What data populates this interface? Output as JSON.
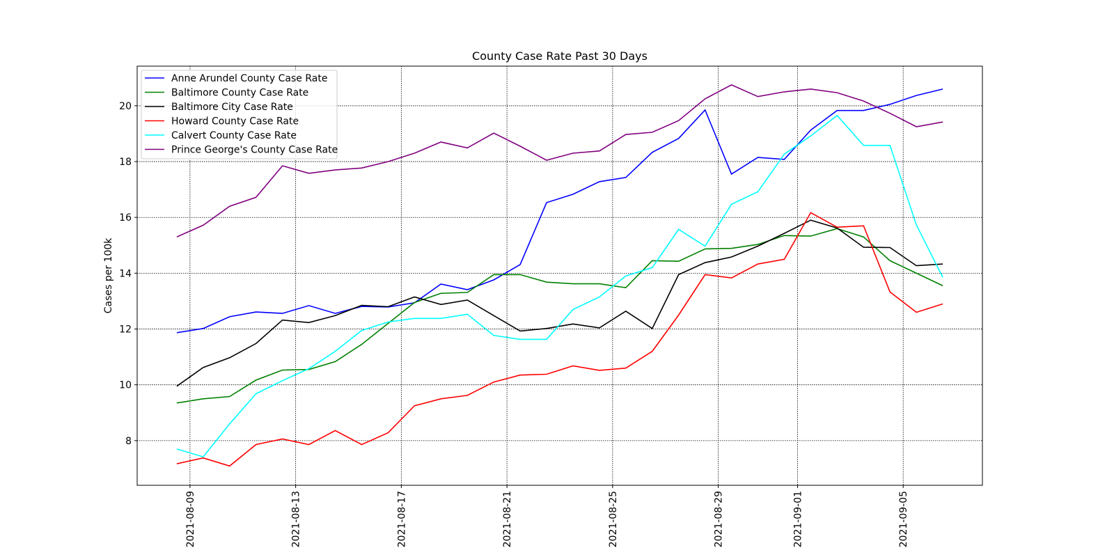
{
  "chart_data": {
    "type": "line",
    "title": "County Case Rate Past 30 Days",
    "ylabel": "Cases per 100k",
    "x": [
      "2021-08-08",
      "2021-08-09",
      "2021-08-10",
      "2021-08-11",
      "2021-08-12",
      "2021-08-13",
      "2021-08-14",
      "2021-08-15",
      "2021-08-16",
      "2021-08-17",
      "2021-08-18",
      "2021-08-19",
      "2021-08-20",
      "2021-08-21",
      "2021-08-22",
      "2021-08-23",
      "2021-08-24",
      "2021-08-25",
      "2021-08-26",
      "2021-08-27",
      "2021-08-28",
      "2021-08-29",
      "2021-08-30",
      "2021-08-31",
      "2021-09-01",
      "2021-09-02",
      "2021-09-03",
      "2021-09-04",
      "2021-09-05",
      "2021-09-06"
    ],
    "xlim": [
      "2021-08-07",
      "2021-09-08"
    ],
    "xticks": [
      "2021-08-09",
      "2021-08-13",
      "2021-08-17",
      "2021-08-21",
      "2021-08-25",
      "2021-08-29",
      "2021-09-01",
      "2021-09-05"
    ],
    "ylim": [
      6.4,
      21.42
    ],
    "yticks": [
      8,
      10,
      12,
      14,
      16,
      18,
      20
    ],
    "grid": true,
    "legend": "upper left",
    "series": [
      {
        "name": "Anne Arundel County Case Rate",
        "color": "#0000ff",
        "values": [
          11.87,
          12.02,
          12.44,
          12.61,
          12.56,
          12.84,
          12.56,
          12.81,
          12.79,
          12.94,
          13.61,
          13.41,
          13.76,
          14.31,
          16.53,
          16.83,
          17.28,
          17.43,
          18.33,
          18.83,
          19.85,
          17.55,
          18.15,
          18.08,
          19.13,
          19.83,
          19.83,
          20.05,
          20.37,
          20.6
        ]
      },
      {
        "name": "Baltimore County Case Rate",
        "color": "#008000",
        "values": [
          9.35,
          9.5,
          9.58,
          10.17,
          10.53,
          10.55,
          10.83,
          11.45,
          12.2,
          12.95,
          13.28,
          13.31,
          13.95,
          13.95,
          13.68,
          13.62,
          13.62,
          13.48,
          14.45,
          14.43,
          14.87,
          14.89,
          15.03,
          15.35,
          15.33,
          15.6,
          15.3,
          14.45,
          14.0,
          13.55
        ]
      },
      {
        "name": "Baltimore City Case Rate",
        "color": "#000000",
        "values": [
          9.95,
          10.62,
          10.97,
          11.48,
          12.32,
          12.23,
          12.48,
          12.85,
          12.8,
          13.15,
          12.88,
          13.04,
          12.48,
          11.93,
          12.02,
          12.18,
          12.04,
          12.64,
          12.02,
          13.95,
          14.38,
          14.58,
          14.97,
          15.43,
          15.9,
          15.62,
          14.93,
          14.92,
          14.27,
          14.33
        ]
      },
      {
        "name": "Howard County Case Rate",
        "color": "#ff0000",
        "values": [
          7.17,
          7.38,
          7.09,
          7.86,
          8.06,
          7.86,
          8.36,
          7.86,
          8.28,
          9.25,
          9.5,
          9.62,
          10.1,
          10.35,
          10.38,
          10.68,
          10.52,
          10.6,
          11.2,
          12.5,
          13.95,
          13.83,
          14.33,
          14.5,
          16.17,
          15.65,
          15.7,
          13.33,
          12.6,
          12.9
        ]
      },
      {
        "name": "Calvert County Case Rate",
        "color": "#00ffff",
        "values": [
          7.7,
          7.42,
          8.6,
          9.68,
          10.15,
          10.58,
          11.2,
          11.95,
          12.25,
          12.38,
          12.38,
          12.53,
          11.77,
          11.63,
          11.63,
          12.7,
          13.15,
          13.9,
          14.2,
          15.57,
          14.97,
          16.47,
          16.92,
          18.27,
          18.92,
          19.65,
          18.58,
          18.58,
          15.73,
          13.85
        ]
      },
      {
        "name": "Prince George's County Case Rate",
        "color": "#800080",
        "values": [
          15.3,
          15.72,
          16.4,
          16.72,
          17.85,
          17.58,
          17.7,
          17.77,
          18.0,
          18.3,
          18.7,
          18.49,
          19.02,
          18.55,
          18.05,
          18.3,
          18.38,
          18.97,
          19.05,
          19.47,
          20.25,
          20.75,
          20.33,
          20.5,
          20.6,
          20.47,
          20.17,
          19.73,
          19.25,
          19.42
        ]
      }
    ]
  }
}
